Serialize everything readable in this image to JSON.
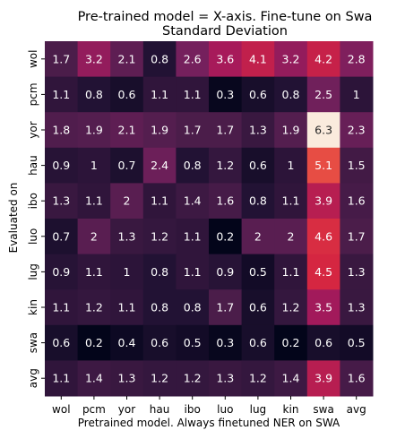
{
  "chart_data": {
    "type": "heatmap",
    "title": "Pre-trained model = X-axis. Fine-tune on Swa",
    "subtitle": "Standard Deviation",
    "xlabel": "Pretrained model. Always finetuned NER on SWA",
    "ylabel": "Evaluated on",
    "x_categories": [
      "wol",
      "pcm",
      "yor",
      "hau",
      "ibo",
      "luo",
      "lug",
      "kin",
      "swa",
      "avg"
    ],
    "y_categories": [
      "wol",
      "pcm",
      "yor",
      "hau",
      "ibo",
      "luo",
      "lug",
      "kin",
      "swa",
      "avg"
    ],
    "values": [
      [
        1.7,
        3.2,
        2.1,
        0.8,
        2.6,
        3.6,
        4.1,
        3.2,
        4.2,
        2.8
      ],
      [
        1.1,
        0.8,
        0.6,
        1.1,
        1.1,
        0.3,
        0.6,
        0.8,
        2.5,
        1
      ],
      [
        1.8,
        1.9,
        2.1,
        1.9,
        1.7,
        1.7,
        1.3,
        1.9,
        6.3,
        2.3
      ],
      [
        0.9,
        1,
        0.7,
        2.4,
        0.8,
        1.2,
        0.6,
        1,
        5.1,
        1.5
      ],
      [
        1.3,
        1.1,
        2,
        1.1,
        1.4,
        1.6,
        0.8,
        1.1,
        3.9,
        1.6
      ],
      [
        0.7,
        2,
        1.3,
        1.2,
        1.1,
        0.2,
        2,
        2,
        4.6,
        1.7
      ],
      [
        0.9,
        1.1,
        1,
        0.8,
        1.1,
        0.9,
        0.5,
        1.1,
        4.5,
        1.3
      ],
      [
        1.1,
        1.2,
        1.1,
        0.8,
        0.8,
        1.7,
        0.6,
        1.2,
        3.5,
        1.3
      ],
      [
        0.6,
        0.2,
        0.4,
        0.6,
        0.5,
        0.3,
        0.6,
        0.2,
        0.6,
        0.5
      ],
      [
        1.1,
        1.4,
        1.3,
        1.2,
        1.2,
        1.3,
        1.2,
        1.4,
        3.9,
        1.6
      ]
    ],
    "colormap": "rocket",
    "colorbar": false,
    "annotations": true,
    "grid": false
  }
}
